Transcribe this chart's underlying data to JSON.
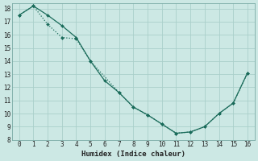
{
  "xlabel": "Humidex (Indice chaleur)",
  "background_color": "#cce8e4",
  "line_color": "#1a6b5a",
  "grid_color": "#aacfca",
  "series1_x": [
    0,
    1,
    2,
    3,
    4,
    5,
    6,
    7,
    8,
    9,
    10,
    11,
    12,
    13,
    14,
    15,
    16
  ],
  "series1_y": [
    17.5,
    18.2,
    17.5,
    16.7,
    15.8,
    14.0,
    12.5,
    11.6,
    10.5,
    9.9,
    9.2,
    8.5,
    8.6,
    9.0,
    10.0,
    10.8,
    13.1
  ],
  "series2_x": [
    0,
    1,
    2,
    3,
    4,
    5,
    7,
    8,
    9,
    10,
    11,
    12,
    13,
    14,
    15,
    16
  ],
  "series2_y": [
    17.5,
    18.2,
    16.8,
    15.8,
    15.7,
    14.0,
    11.6,
    10.5,
    9.9,
    9.2,
    8.5,
    8.6,
    9.0,
    10.0,
    10.8,
    13.1
  ],
  "xlim": [
    -0.5,
    16.5
  ],
  "ylim": [
    8,
    18.4
  ],
  "yticks": [
    8,
    9,
    10,
    11,
    12,
    13,
    14,
    15,
    16,
    17,
    18
  ],
  "xticks": [
    0,
    1,
    2,
    3,
    4,
    5,
    6,
    7,
    8,
    9,
    10,
    11,
    12,
    13,
    14,
    15,
    16
  ],
  "tick_fontsize": 5.5,
  "xlabel_fontsize": 6.5
}
